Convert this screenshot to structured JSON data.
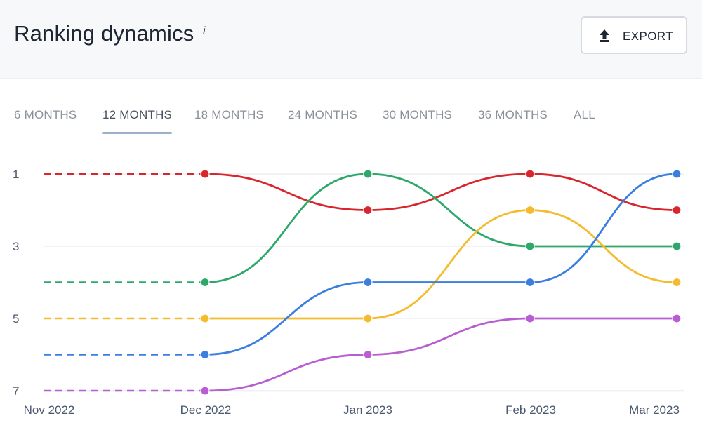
{
  "header": {
    "title": "Ranking dynamics",
    "info_glyph": "i",
    "export_label": "EXPORT",
    "export_icon": "upload-arrow-icon"
  },
  "tabs": [
    {
      "label": "6 MONTHS",
      "active": false
    },
    {
      "label": "12 MONTHS",
      "active": true
    },
    {
      "label": "18 MONTHS",
      "active": false
    },
    {
      "label": "24 MONTHS",
      "active": false
    },
    {
      "label": "30 MONTHS",
      "active": false
    },
    {
      "label": "36 MONTHS",
      "active": false
    },
    {
      "label": "ALL",
      "active": false
    }
  ],
  "chart_data": {
    "type": "line",
    "title": "",
    "xlabel": "",
    "ylabel": "",
    "x": [
      "Nov 2022",
      "Dec 2022",
      "Jan 2023",
      "Feb 2023",
      "Mar 2023"
    ],
    "y_ticks": [
      1,
      3,
      5,
      7
    ],
    "ylim": [
      1,
      7
    ],
    "y_inverted": true,
    "grid": true,
    "legend": "none",
    "dashed_segment": "Nov 2022 to Dec 2022",
    "series": [
      {
        "color": "#d7262e",
        "values": [
          1,
          1,
          2,
          1,
          2
        ]
      },
      {
        "color": "#2ea86a",
        "values": [
          4,
          4,
          1,
          3,
          3
        ]
      },
      {
        "color": "#f4bb2c",
        "values": [
          5,
          5,
          5,
          2,
          4
        ]
      },
      {
        "color": "#3a7ee0",
        "values": [
          6,
          6,
          4,
          4,
          1
        ]
      },
      {
        "color": "#b85ed0",
        "values": [
          7,
          7,
          6,
          5,
          5
        ]
      }
    ]
  }
}
